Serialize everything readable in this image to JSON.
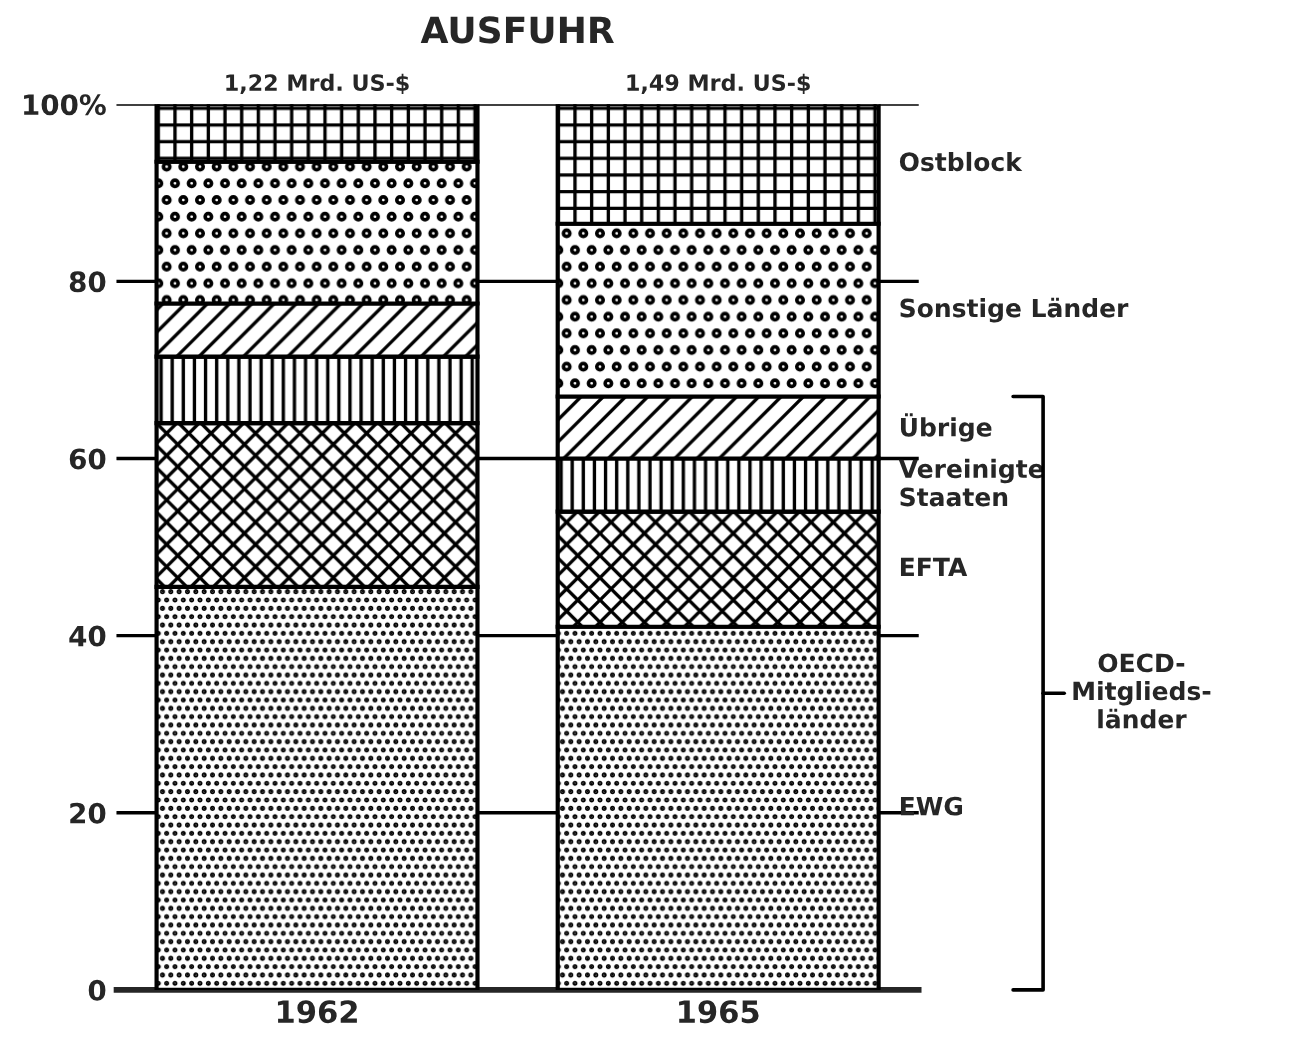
{
  "chart_data": {
    "type": "bar",
    "stacked": true,
    "title": "AUSFUHR",
    "categories": [
      "1962",
      "1965"
    ],
    "series": [
      {
        "name": "EWG",
        "color": "#000000",
        "values": [
          45.5,
          41
        ]
      },
      {
        "name": "EFTA",
        "color": "#000000",
        "values": [
          18.5,
          13
        ]
      },
      {
        "name": "Vereinigte\nStaaten",
        "color": "#000000",
        "values": [
          7.5,
          6
        ]
      },
      {
        "name": "Übrige",
        "color": "#000000",
        "values": [
          6,
          7
        ]
      },
      {
        "name": "Sonstige Länder",
        "color": "#000000",
        "values": [
          16,
          19.5
        ]
      },
      {
        "name": "Ostblock",
        "color": "#000000",
        "values": [
          6.5,
          13.5
        ]
      }
    ],
    "annotations": [
      {
        "text": "1,22 Mrd. US-$",
        "x": "1962",
        "y": 100
      },
      {
        "text": "1,49 Mrd. US-$",
        "x": "1965",
        "y": 100
      },
      "OECD-\nMitglieds-\nländer"
    ],
    "ylim": [
      0,
      100
    ],
    "yticks": [
      0,
      20,
      40,
      60,
      80,
      {
        "value": 100,
        "label": "100%"
      }
    ],
    "grid": "y",
    "legend": false
  }
}
